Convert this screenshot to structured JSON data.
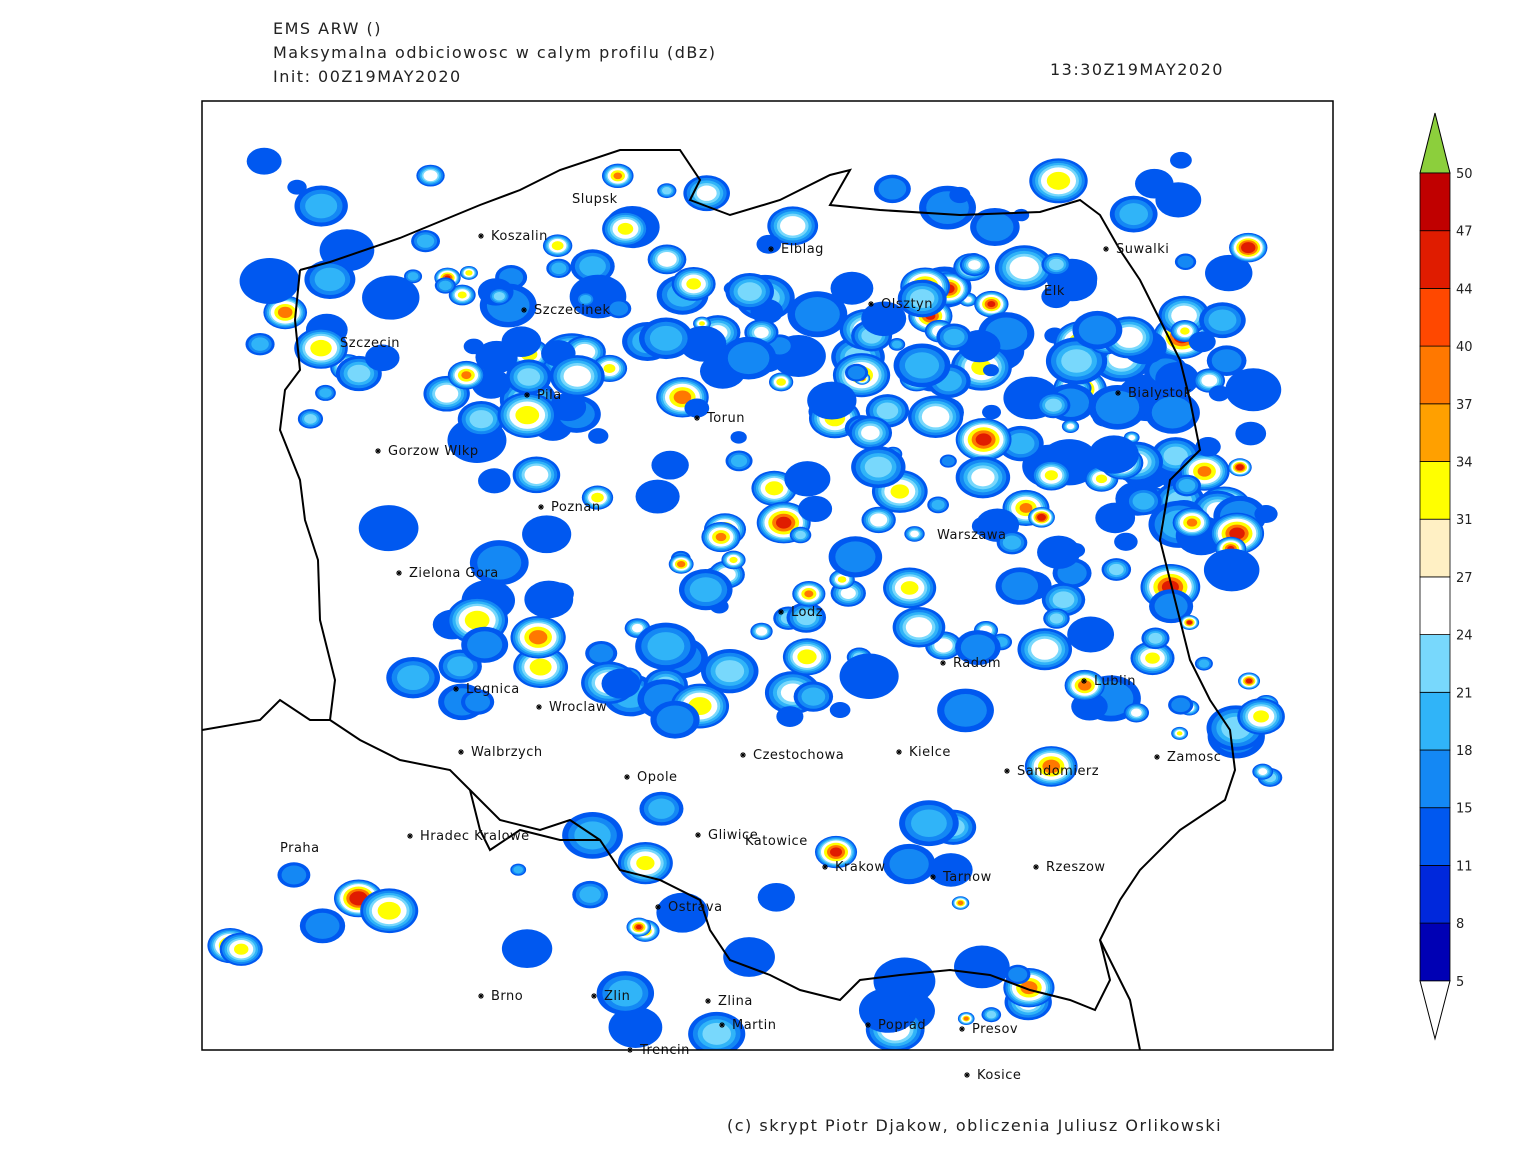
{
  "header": {
    "lines": [
      "EMS ARW ()",
      "Maksymalna odbiciowosc w calym profilu (dBz)",
      "Init: 00Z19MAY2020"
    ],
    "valid_time": "13:30Z19MAY2020"
  },
  "cities": [
    "Slupsk",
    "Koszalin",
    "Elblag",
    "Suwalki",
    "Elk",
    "Szczecinek",
    "Olsztyn",
    "Szczecin",
    "Bialystok",
    "Pila",
    "Torun",
    "Gorzow Wlkp",
    "Poznan",
    "Warszawa",
    "Zielona Gora",
    "Lodz",
    "Radom",
    "Lublin",
    "Legnica",
    "Wroclaw",
    "Walbrzych",
    "Czestochowa",
    "Kielce",
    "Zamosc",
    "Opole",
    "Sandomierz",
    "Hradec Kralowe",
    "Gliwice",
    "Katowice",
    "Praha",
    "Krakow",
    "Tarnow",
    "Rzeszow",
    "Ostrava",
    "Brno",
    "Zlin",
    "Zlina",
    "Martin",
    "Poprad",
    "Presov",
    "Trencin",
    "Kosice"
  ],
  "colorbar": {
    "levels": [
      5,
      8,
      11,
      15,
      18,
      21,
      24,
      27,
      31,
      34,
      37,
      40,
      44,
      47,
      50
    ],
    "colors": [
      "#0000b4",
      "#0028dc",
      "#0058f0",
      "#1488f4",
      "#30b4f8",
      "#78d8fc",
      "#ffffff",
      "#fff0c4",
      "#ffff00",
      "#ffa000",
      "#ff7800",
      "#ff4800",
      "#e01c00",
      "#c00000"
    ],
    "over_color": "#8ccf3c",
    "under_color": "#ffffff"
  },
  "footer": "(c) skrypt Piotr Djakow, obliczenia Juliusz Orlikowski"
}
